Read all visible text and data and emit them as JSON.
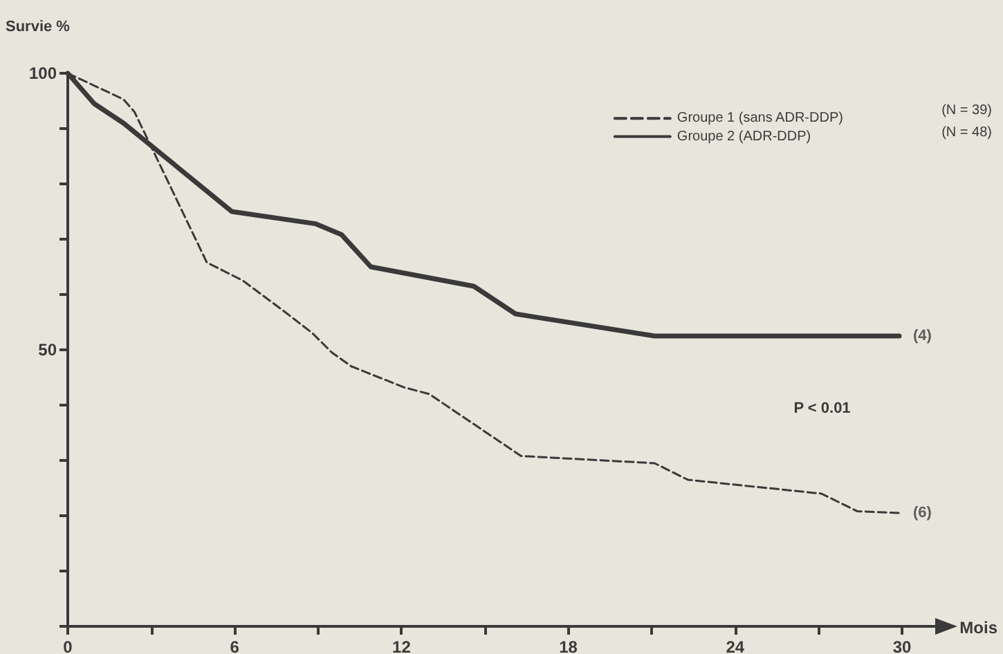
{
  "chart_data": {
    "type": "line",
    "xlabel": "Mois",
    "ylabel": "Survie %",
    "xlim": [
      0,
      30
    ],
    "ylim": [
      0,
      100
    ],
    "xticks": [
      0,
      {
        "value": 3,
        "label": null
      },
      6,
      {
        "value": 9,
        "label": null
      },
      12,
      {
        "value": 15,
        "label": null
      },
      18,
      {
        "value": 21,
        "label": null
      },
      24,
      {
        "value": 27,
        "label": null
      },
      30
    ],
    "yticks": [
      {
        "value": 0,
        "label": null
      },
      {
        "value": 10,
        "label": null
      },
      {
        "value": 20,
        "label": null
      },
      {
        "value": 30,
        "label": null
      },
      {
        "value": 40,
        "label": null
      },
      50,
      {
        "value": 60,
        "label": null
      },
      {
        "value": 70,
        "label": null
      },
      {
        "value": 80,
        "label": null
      },
      {
        "value": 90,
        "label": null
      },
      100
    ],
    "series": [
      {
        "name": "Groupe 1 (sans ADR-DDP)",
        "color": "#3a3a3a",
        "line_style": "dashed",
        "x": [
          0,
          2,
          2.4,
          5,
          6.3,
          7.9,
          8.8,
          9.5,
          10.2,
          12.1,
          13,
          16.3,
          21.1,
          22.3,
          27.1,
          28.4,
          29.9
        ],
        "values": [
          100,
          95.3,
          93,
          65.8,
          62.5,
          56.5,
          53,
          49.5,
          47,
          43.2,
          42,
          30.8,
          29.5,
          26.5,
          24,
          20.8,
          20.5
        ]
      },
      {
        "name": "Groupe 2 (ADR-DDP)",
        "color": "#3a3a3a",
        "line_style": "solid",
        "x": [
          0,
          0.95,
          2,
          5.9,
          8.9,
          9.85,
          10.9,
          14.6,
          16.1,
          21.1,
          29.9
        ],
        "values": [
          100,
          94.5,
          91,
          75,
          72.8,
          70.8,
          65,
          61.5,
          56.5,
          52.5,
          52.5
        ]
      }
    ],
    "annotations": [
      "(N = 39)",
      "(N = 48)",
      {
        "text": "(6)",
        "x": 29.9,
        "y": 20.5
      },
      {
        "text": "(4)",
        "x": 29.9,
        "y": 52.5
      },
      "P < 0.01"
    ],
    "marker": "none",
    "grid": false,
    "legend": "top right"
  }
}
